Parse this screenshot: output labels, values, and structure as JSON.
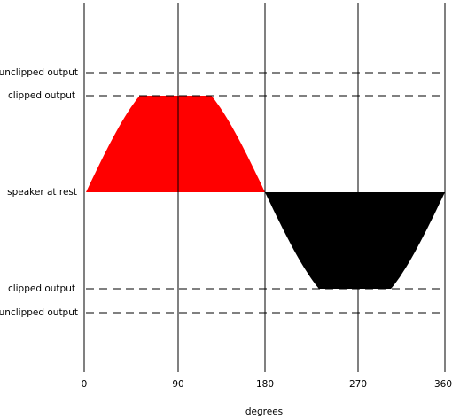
{
  "levels": {
    "unclipped_top": "unclipped output",
    "clipped_top": "clipped output",
    "rest": "speaker at rest",
    "clipped_bottom": "clipped output",
    "unclipped_bottom": "unclipped output"
  },
  "x_axis": {
    "ticks": [
      "0",
      "90",
      "180",
      "270",
      "360"
    ],
    "label": "degrees"
  }
}
